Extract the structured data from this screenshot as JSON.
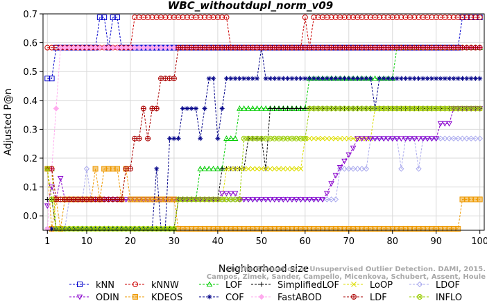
{
  "chart_data": {
    "type": "line",
    "title": "WBC_withoutdupl_norm_v09",
    "xlabel": "Neighborhood size",
    "ylabel": "Adjusted P@n",
    "xlim": [
      0,
      101
    ],
    "ylim": [
      -0.05,
      0.7
    ],
    "xticks": [
      1,
      10,
      20,
      30,
      40,
      50,
      60,
      70,
      80,
      90,
      100
    ],
    "yticks": [
      0.0,
      0.1,
      0.2,
      0.3,
      0.4,
      0.5,
      0.6,
      0.7
    ],
    "ytick_labels": [
      "0.0",
      "0.1",
      "0.2",
      "0.3",
      "0.4",
      "0.5",
      "0.6",
      "0.7"
    ],
    "grid": true,
    "legend_position": "bottom",
    "watermark": [
      "Campos, Zimek, Sander, Campello, Micenkova, Schubert, Assent, Houle",
      "On the Evaluation of Unsupervised Outlier Detection. DAMI, 2015."
    ],
    "series": [
      {
        "name": "kNN",
        "color": "#0000cc",
        "marker": "square",
        "points": [
          [
            1,
            0.476
          ],
          [
            2,
            0.476
          ],
          [
            3,
            0.583
          ],
          [
            12,
            0.583
          ],
          [
            13,
            0.688
          ],
          [
            14,
            0.688
          ],
          [
            15,
            0.583
          ],
          [
            16,
            0.688
          ],
          [
            17,
            0.688
          ],
          [
            18,
            0.583
          ],
          [
            95,
            0.583
          ],
          [
            96,
            0.688
          ],
          [
            100,
            0.688
          ]
        ]
      },
      {
        "name": "kNNW",
        "color": "#cc0000",
        "marker": "circle",
        "points": [
          [
            1,
            0.583
          ],
          [
            14,
            0.583
          ],
          [
            15,
            0.583
          ],
          [
            16,
            0.583
          ],
          [
            20,
            0.583
          ],
          [
            21,
            0.688
          ],
          [
            42,
            0.688
          ],
          [
            43,
            0.583
          ],
          [
            59,
            0.583
          ],
          [
            60,
            0.688
          ],
          [
            61,
            0.583
          ],
          [
            62,
            0.688
          ],
          [
            100,
            0.688
          ]
        ]
      },
      {
        "name": "LOF",
        "color": "#00cc00",
        "marker": "triangle-up",
        "points": [
          [
            1,
            0.163
          ],
          [
            2,
            0.163
          ],
          [
            3,
            -0.045
          ],
          [
            4,
            -0.045
          ],
          [
            5,
            -0.045
          ],
          [
            30,
            -0.045
          ],
          [
            31,
            0.057
          ],
          [
            35,
            0.057
          ],
          [
            36,
            0.163
          ],
          [
            41,
            0.163
          ],
          [
            42,
            0.268
          ],
          [
            43,
            0.268
          ],
          [
            44,
            0.268
          ],
          [
            45,
            0.372
          ],
          [
            60,
            0.372
          ],
          [
            61,
            0.476
          ],
          [
            80,
            0.476
          ],
          [
            81,
            0.583
          ],
          [
            100,
            0.583
          ]
        ]
      },
      {
        "name": "SimplifiedLOF",
        "color": "#000000",
        "marker": "plus",
        "points": [
          [
            1,
            0.057
          ],
          [
            2,
            0.057
          ],
          [
            3,
            -0.045
          ],
          [
            30,
            -0.045
          ],
          [
            31,
            0.057
          ],
          [
            40,
            0.057
          ],
          [
            41,
            0.163
          ],
          [
            46,
            0.163
          ],
          [
            47,
            0.268
          ],
          [
            50,
            0.268
          ],
          [
            51,
            0.163
          ],
          [
            52,
            0.372
          ],
          [
            60,
            0.372
          ],
          [
            61,
            0.372
          ],
          [
            70,
            0.372
          ],
          [
            75,
            0.372
          ],
          [
            80,
            0.372
          ],
          [
            81,
            0.372
          ],
          [
            100,
            0.372
          ]
        ]
      },
      {
        "name": "LoOP",
        "color": "#dddd00",
        "marker": "x",
        "points": [
          [
            1,
            0.163
          ],
          [
            2,
            0.163
          ],
          [
            3,
            -0.045
          ],
          [
            30,
            -0.045
          ],
          [
            31,
            0.057
          ],
          [
            40,
            0.057
          ],
          [
            41,
            0.057
          ],
          [
            42,
            0.163
          ],
          [
            46,
            0.163
          ],
          [
            47,
            0.163
          ],
          [
            55,
            0.163
          ],
          [
            56,
            0.163
          ],
          [
            59,
            0.163
          ],
          [
            60,
            0.268
          ],
          [
            75,
            0.268
          ],
          [
            76,
            0.372
          ],
          [
            100,
            0.372
          ]
        ]
      },
      {
        "name": "LDOF",
        "color": "#aaaaee",
        "marker": "diamond",
        "points": [
          [
            1,
            -0.045
          ],
          [
            5,
            -0.045
          ],
          [
            6,
            0.057
          ],
          [
            9,
            0.057
          ],
          [
            10,
            0.163
          ],
          [
            11,
            0.057
          ],
          [
            63,
            0.057
          ],
          [
            64,
            0.057
          ],
          [
            65,
            0.057
          ],
          [
            66,
            0.057
          ],
          [
            67,
            0.057
          ],
          [
            68,
            0.163
          ],
          [
            74,
            0.163
          ],
          [
            75,
            0.268
          ],
          [
            81,
            0.268
          ],
          [
            82,
            0.163
          ],
          [
            83,
            0.268
          ],
          [
            85,
            0.268
          ],
          [
            86,
            0.163
          ],
          [
            87,
            0.268
          ],
          [
            100,
            0.268
          ]
        ]
      },
      {
        "name": "ODIN",
        "color": "#8800cc",
        "marker": "triangle-down",
        "points": [
          [
            1,
            0.035
          ],
          [
            2,
            0.1
          ],
          [
            3,
            0.057
          ],
          [
            4,
            0.13
          ],
          [
            5,
            0.057
          ],
          [
            40,
            0.057
          ],
          [
            41,
            0.078
          ],
          [
            44,
            0.078
          ],
          [
            45,
            0.057
          ],
          [
            63,
            0.057
          ],
          [
            64,
            0.057
          ],
          [
            65,
            0.078
          ],
          [
            66,
            0.112
          ],
          [
            67,
            0.14
          ],
          [
            68,
            0.168
          ],
          [
            69,
            0.19
          ],
          [
            70,
            0.212
          ],
          [
            71,
            0.235
          ],
          [
            72,
            0.268
          ],
          [
            80,
            0.268
          ],
          [
            85,
            0.268
          ],
          [
            90,
            0.268
          ],
          [
            91,
            0.32
          ],
          [
            92,
            0.32
          ],
          [
            93,
            0.32
          ],
          [
            94,
            0.372
          ],
          [
            100,
            0.372
          ]
        ]
      },
      {
        "name": "KDEOS",
        "color": "#ee9900",
        "marker": "square-filled",
        "points": [
          [
            1,
            0.163
          ],
          [
            2,
            -0.045
          ],
          [
            3,
            0.057
          ],
          [
            4,
            -0.045
          ],
          [
            5,
            0.057
          ],
          [
            11,
            0.057
          ],
          [
            12,
            0.163
          ],
          [
            13,
            0.057
          ],
          [
            14,
            0.163
          ],
          [
            17,
            0.163
          ],
          [
            18,
            0.057
          ],
          [
            19,
            0.163
          ],
          [
            20,
            0.057
          ],
          [
            30,
            0.057
          ],
          [
            31,
            -0.045
          ],
          [
            95,
            -0.045
          ],
          [
            96,
            0.057
          ],
          [
            100,
            0.057
          ]
        ]
      },
      {
        "name": "COF",
        "color": "#000088",
        "marker": "asterisk",
        "points": [
          [
            1,
            -0.045
          ],
          [
            25,
            -0.045
          ],
          [
            26,
            0.163
          ],
          [
            27,
            -0.045
          ],
          [
            29,
            0.268
          ],
          [
            30,
            0.268
          ],
          [
            31,
            0.268
          ],
          [
            32,
            0.372
          ],
          [
            35,
            0.372
          ],
          [
            36,
            0.268
          ],
          [
            37,
            0.372
          ],
          [
            38,
            0.476
          ],
          [
            39,
            0.476
          ],
          [
            40,
            0.268
          ],
          [
            41,
            0.372
          ],
          [
            42,
            0.476
          ],
          [
            49,
            0.476
          ],
          [
            50,
            0.583
          ],
          [
            51,
            0.476
          ],
          [
            60,
            0.476
          ],
          [
            75,
            0.476
          ],
          [
            76,
            0.372
          ],
          [
            77,
            0.476
          ],
          [
            100,
            0.476
          ]
        ]
      },
      {
        "name": "FastABOD",
        "color": "#ffaaee",
        "marker": "diamond-filled",
        "points": [
          [
            1,
            -0.045
          ],
          [
            2,
            0.163
          ],
          [
            3,
            0.372
          ],
          [
            4,
            0.583
          ],
          [
            100,
            0.583
          ]
        ]
      },
      {
        "name": "LDF",
        "color": "#aa0000",
        "marker": "circle-cross",
        "points": [
          [
            1,
            0.163
          ],
          [
            2,
            0.163
          ],
          [
            3,
            0.057
          ],
          [
            4,
            0.057
          ],
          [
            18,
            0.057
          ],
          [
            19,
            0.163
          ],
          [
            20,
            0.163
          ],
          [
            21,
            0.268
          ],
          [
            22,
            0.268
          ],
          [
            23,
            0.372
          ],
          [
            24,
            0.268
          ],
          [
            25,
            0.372
          ],
          [
            26,
            0.372
          ],
          [
            27,
            0.476
          ],
          [
            30,
            0.476
          ],
          [
            31,
            0.583
          ],
          [
            100,
            0.583
          ]
        ]
      },
      {
        "name": "INFLO",
        "color": "#99cc00",
        "marker": "circle-x",
        "points": [
          [
            1,
            0.163
          ],
          [
            2,
            0.057
          ],
          [
            3,
            -0.045
          ],
          [
            30,
            -0.045
          ],
          [
            31,
            0.057
          ],
          [
            40,
            0.057
          ],
          [
            41,
            0.057
          ],
          [
            45,
            0.057
          ],
          [
            46,
            0.268
          ],
          [
            60,
            0.268
          ],
          [
            61,
            0.372
          ],
          [
            100,
            0.372
          ]
        ]
      }
    ]
  }
}
